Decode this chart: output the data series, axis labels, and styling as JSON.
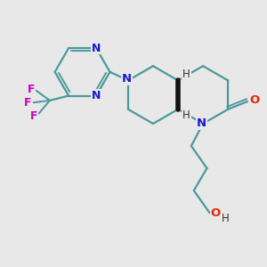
{
  "bg_color": "#e8e8e8",
  "bond_color": "#4a9a9c",
  "N_color": "#1a1acc",
  "O_color": "#ee2200",
  "F_color": "#cc00bb",
  "lw": 1.6,
  "figsize": [
    3.0,
    3.0
  ],
  "dpi": 100,
  "xlim": [
    0,
    10
  ],
  "ylim": [
    0,
    10
  ]
}
